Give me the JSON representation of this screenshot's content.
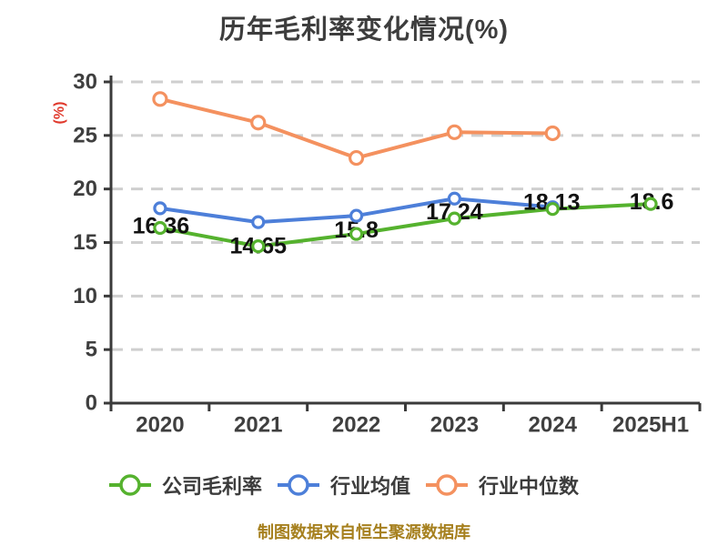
{
  "footer": "制图数据来自恒生聚源数据库",
  "chart_data": {
    "type": "line",
    "title": "历年毛利率变化情况(%)",
    "xlabel": "",
    "ylabel": "(%)",
    "ylabel_color": "#e0392c",
    "categories": [
      "2020",
      "2021",
      "2022",
      "2023",
      "2024",
      "2025H1"
    ],
    "series": [
      {
        "name": "公司毛利率",
        "color": "#55b22e",
        "values": [
          16.36,
          14.65,
          15.8,
          17.24,
          18.13,
          18.6
        ],
        "labels": [
          "16.36",
          "14.65",
          "15.8",
          "17.24",
          "18.13",
          "18.6"
        ],
        "label_dx": [
          1,
          0,
          0,
          0,
          -1,
          1
        ],
        "label_dy": [
          -2,
          0,
          -4,
          -7,
          -7,
          -2
        ],
        "marker_radius": 6
      },
      {
        "name": "行业均值",
        "color": "#4d7fd9",
        "values": [
          18.2,
          16.9,
          17.5,
          19.1,
          18.3,
          null
        ],
        "labels": null,
        "marker_radius": 6
      },
      {
        "name": "行业中位数",
        "color": "#f4915f",
        "values": [
          28.4,
          26.2,
          22.9,
          25.3,
          25.2,
          null
        ],
        "labels": null,
        "marker_radius": 7
      }
    ],
    "ylim": [
      0,
      30
    ],
    "yticks": [
      0,
      5,
      10,
      15,
      20,
      25,
      30
    ],
    "grid": "horizontal-dashed",
    "grid_color": "#cfcfcf",
    "axis_color": "#3a3a3a",
    "legend_position": "bottom"
  }
}
